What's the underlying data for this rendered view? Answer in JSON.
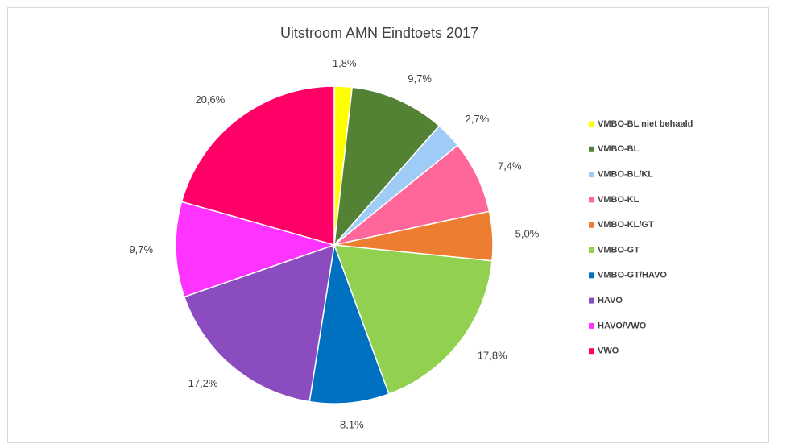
{
  "chart_data": {
    "type": "pie",
    "title": "Uitstroom AMN Eindtoets 2017",
    "categories": [
      "VMBO-BL niet behaald",
      "VMBO-BL",
      "VMBO-BL/KL",
      "VMBO-KL",
      "VMBO-KL/GT",
      "VMBO-GT",
      "VMBO-GT/HAVO",
      "HAVO",
      "HAVO/VWO",
      "VWO"
    ],
    "values": [
      1.8,
      9.7,
      2.7,
      7.4,
      5.0,
      17.8,
      8.1,
      17.2,
      9.7,
      20.6
    ],
    "value_labels": [
      "1,8%",
      "9,7%",
      "2,7%",
      "7,4%",
      "5,0%",
      "17,8%",
      "8,1%",
      "17,2%",
      "9,7%",
      "20,6%"
    ],
    "colors": [
      "#ffff00",
      "#548235",
      "#9fcbf7",
      "#ff6699",
      "#ed7d31",
      "#92d050",
      "#0070c0",
      "#8b4cbf",
      "#ff33ff",
      "#ff0066"
    ],
    "legend": "right"
  }
}
